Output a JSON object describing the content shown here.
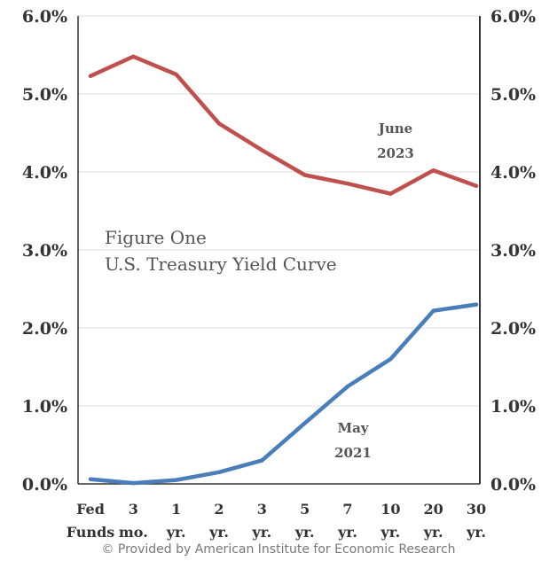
{
  "chart_data": {
    "type": "line",
    "title": "Figure One",
    "subtitle": "U.S. Treasury Yield Curve",
    "categories": [
      [
        "Fed",
        "Funds"
      ],
      [
        "3",
        "mo."
      ],
      [
        "1",
        "yr."
      ],
      [
        "2",
        "yr."
      ],
      [
        "3",
        "yr."
      ],
      [
        "5",
        "yr."
      ],
      [
        "7",
        "yr."
      ],
      [
        "10",
        "yr."
      ],
      [
        "20",
        "yr."
      ],
      [
        "30",
        "yr."
      ]
    ],
    "ylim": [
      0,
      6
    ],
    "yticks": [
      "0.0%",
      "1.0%",
      "2.0%",
      "3.0%",
      "4.0%",
      "5.0%",
      "6.0%"
    ],
    "grid": true,
    "series": [
      {
        "name": "June 2023",
        "label_lines": [
          "June",
          "2023"
        ],
        "color": "#c0504d",
        "values": [
          5.23,
          5.48,
          5.25,
          4.62,
          4.28,
          3.96,
          3.85,
          3.72,
          4.02,
          3.82
        ]
      },
      {
        "name": "May 2021",
        "label_lines": [
          "May",
          "2021"
        ],
        "color": "#4a7ebb",
        "values": [
          0.06,
          0.01,
          0.05,
          0.15,
          0.3,
          0.78,
          1.25,
          1.6,
          2.22,
          2.3
        ]
      }
    ]
  },
  "credit": "© Provided by American Institute for Economic Research"
}
